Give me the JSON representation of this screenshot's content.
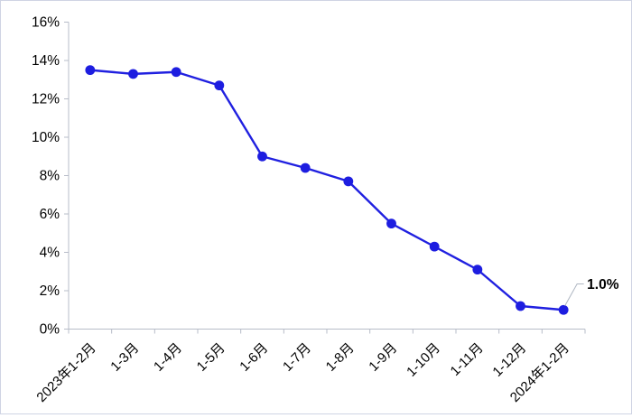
{
  "chart_data": {
    "type": "line",
    "title": "",
    "categories": [
      "2023年1-2月",
      "1-3月",
      "1-4月",
      "1-5月",
      "1-6月",
      "1-7月",
      "1-8月",
      "1-9月",
      "1-10月",
      "1-11月",
      "1-12月",
      "2024年1-2月"
    ],
    "values": [
      13.5,
      13.3,
      13.4,
      12.7,
      9.0,
      8.4,
      7.7,
      5.5,
      4.3,
      3.1,
      1.2,
      1.0
    ],
    "y_tick_labels": [
      "0%",
      "2%",
      "4%",
      "6%",
      "8%",
      "10%",
      "12%",
      "14%",
      "16%"
    ],
    "ylim": [
      0,
      16
    ],
    "y_tick_step": 2,
    "grid": false,
    "legend": false,
    "annotation": {
      "text": "1.0%",
      "point_index": 11
    },
    "colors": {
      "line": "#2020e0",
      "marker": "#1d1de0",
      "axis": "#b7bcc8",
      "tick": "#b7bcc8",
      "label_text": "#000000",
      "annotation_text": "#000000",
      "leader_line": "#aeb6c2",
      "background": "#ffffff"
    }
  }
}
